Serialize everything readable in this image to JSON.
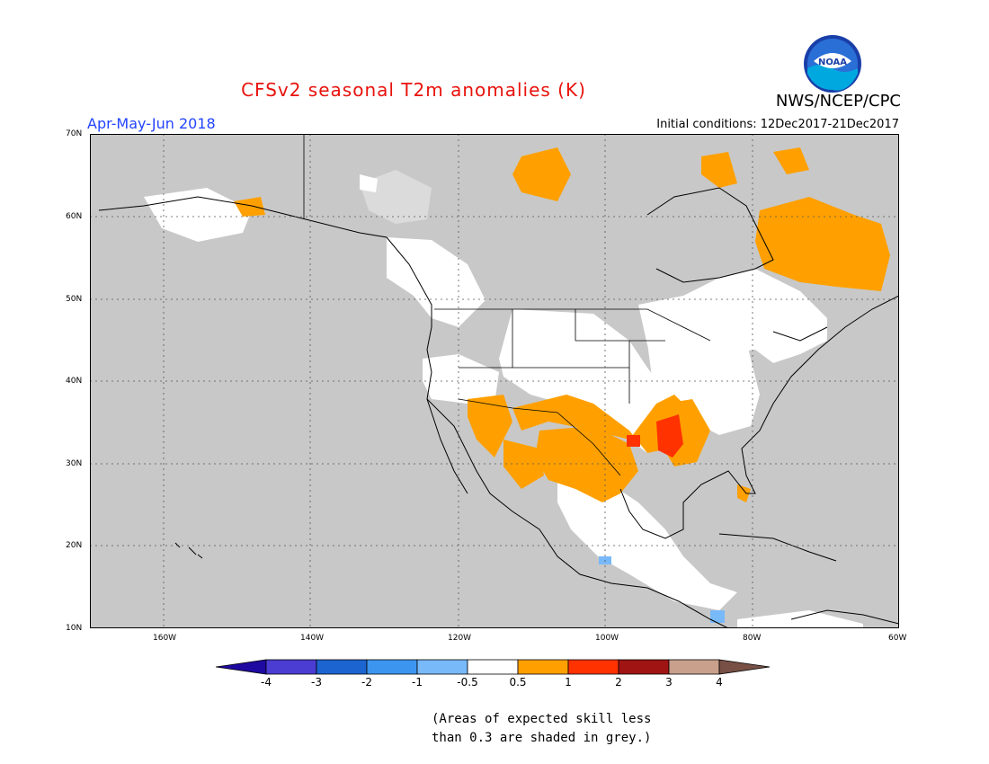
{
  "title": "CFSv2 seasonal T2m anomalies (K)",
  "period": "Apr-May-Jun 2018",
  "initial_conditions": "Initial conditions: 12Dec2017-21Dec2017",
  "agency": "NWS/NCEP/CPC",
  "logo_text": "NOAA",
  "lat_labels": [
    "70N",
    "60N",
    "50N",
    "40N",
    "30N",
    "20N",
    "10N"
  ],
  "lon_labels": [
    "160W",
    "140W",
    "120W",
    "100W",
    "80W",
    "60W"
  ],
  "colorbar": {
    "labels": [
      "-4",
      "-3",
      "-2",
      "-1",
      "-0.5",
      "0.5",
      "1",
      "2",
      "3",
      "4"
    ],
    "colors": [
      "#1e0aa0",
      "#4b3cd2",
      "#1c64d0",
      "#3c96f0",
      "#78b9fa",
      "#ffffff",
      "#ffa000",
      "#ff3200",
      "#a01414",
      "#c8a08c",
      "#785046"
    ]
  },
  "footnote_lines": [
    "(Areas of expected skill less",
    "than 0.3 are shaded in grey.)"
  ],
  "colors": {
    "grey": "#c8c8c8",
    "orange": "#ffa000",
    "red": "#ff3200",
    "light_blue": "#78b9fa",
    "title_red": "#e8120c",
    "period_blue": "#2345ff"
  }
}
